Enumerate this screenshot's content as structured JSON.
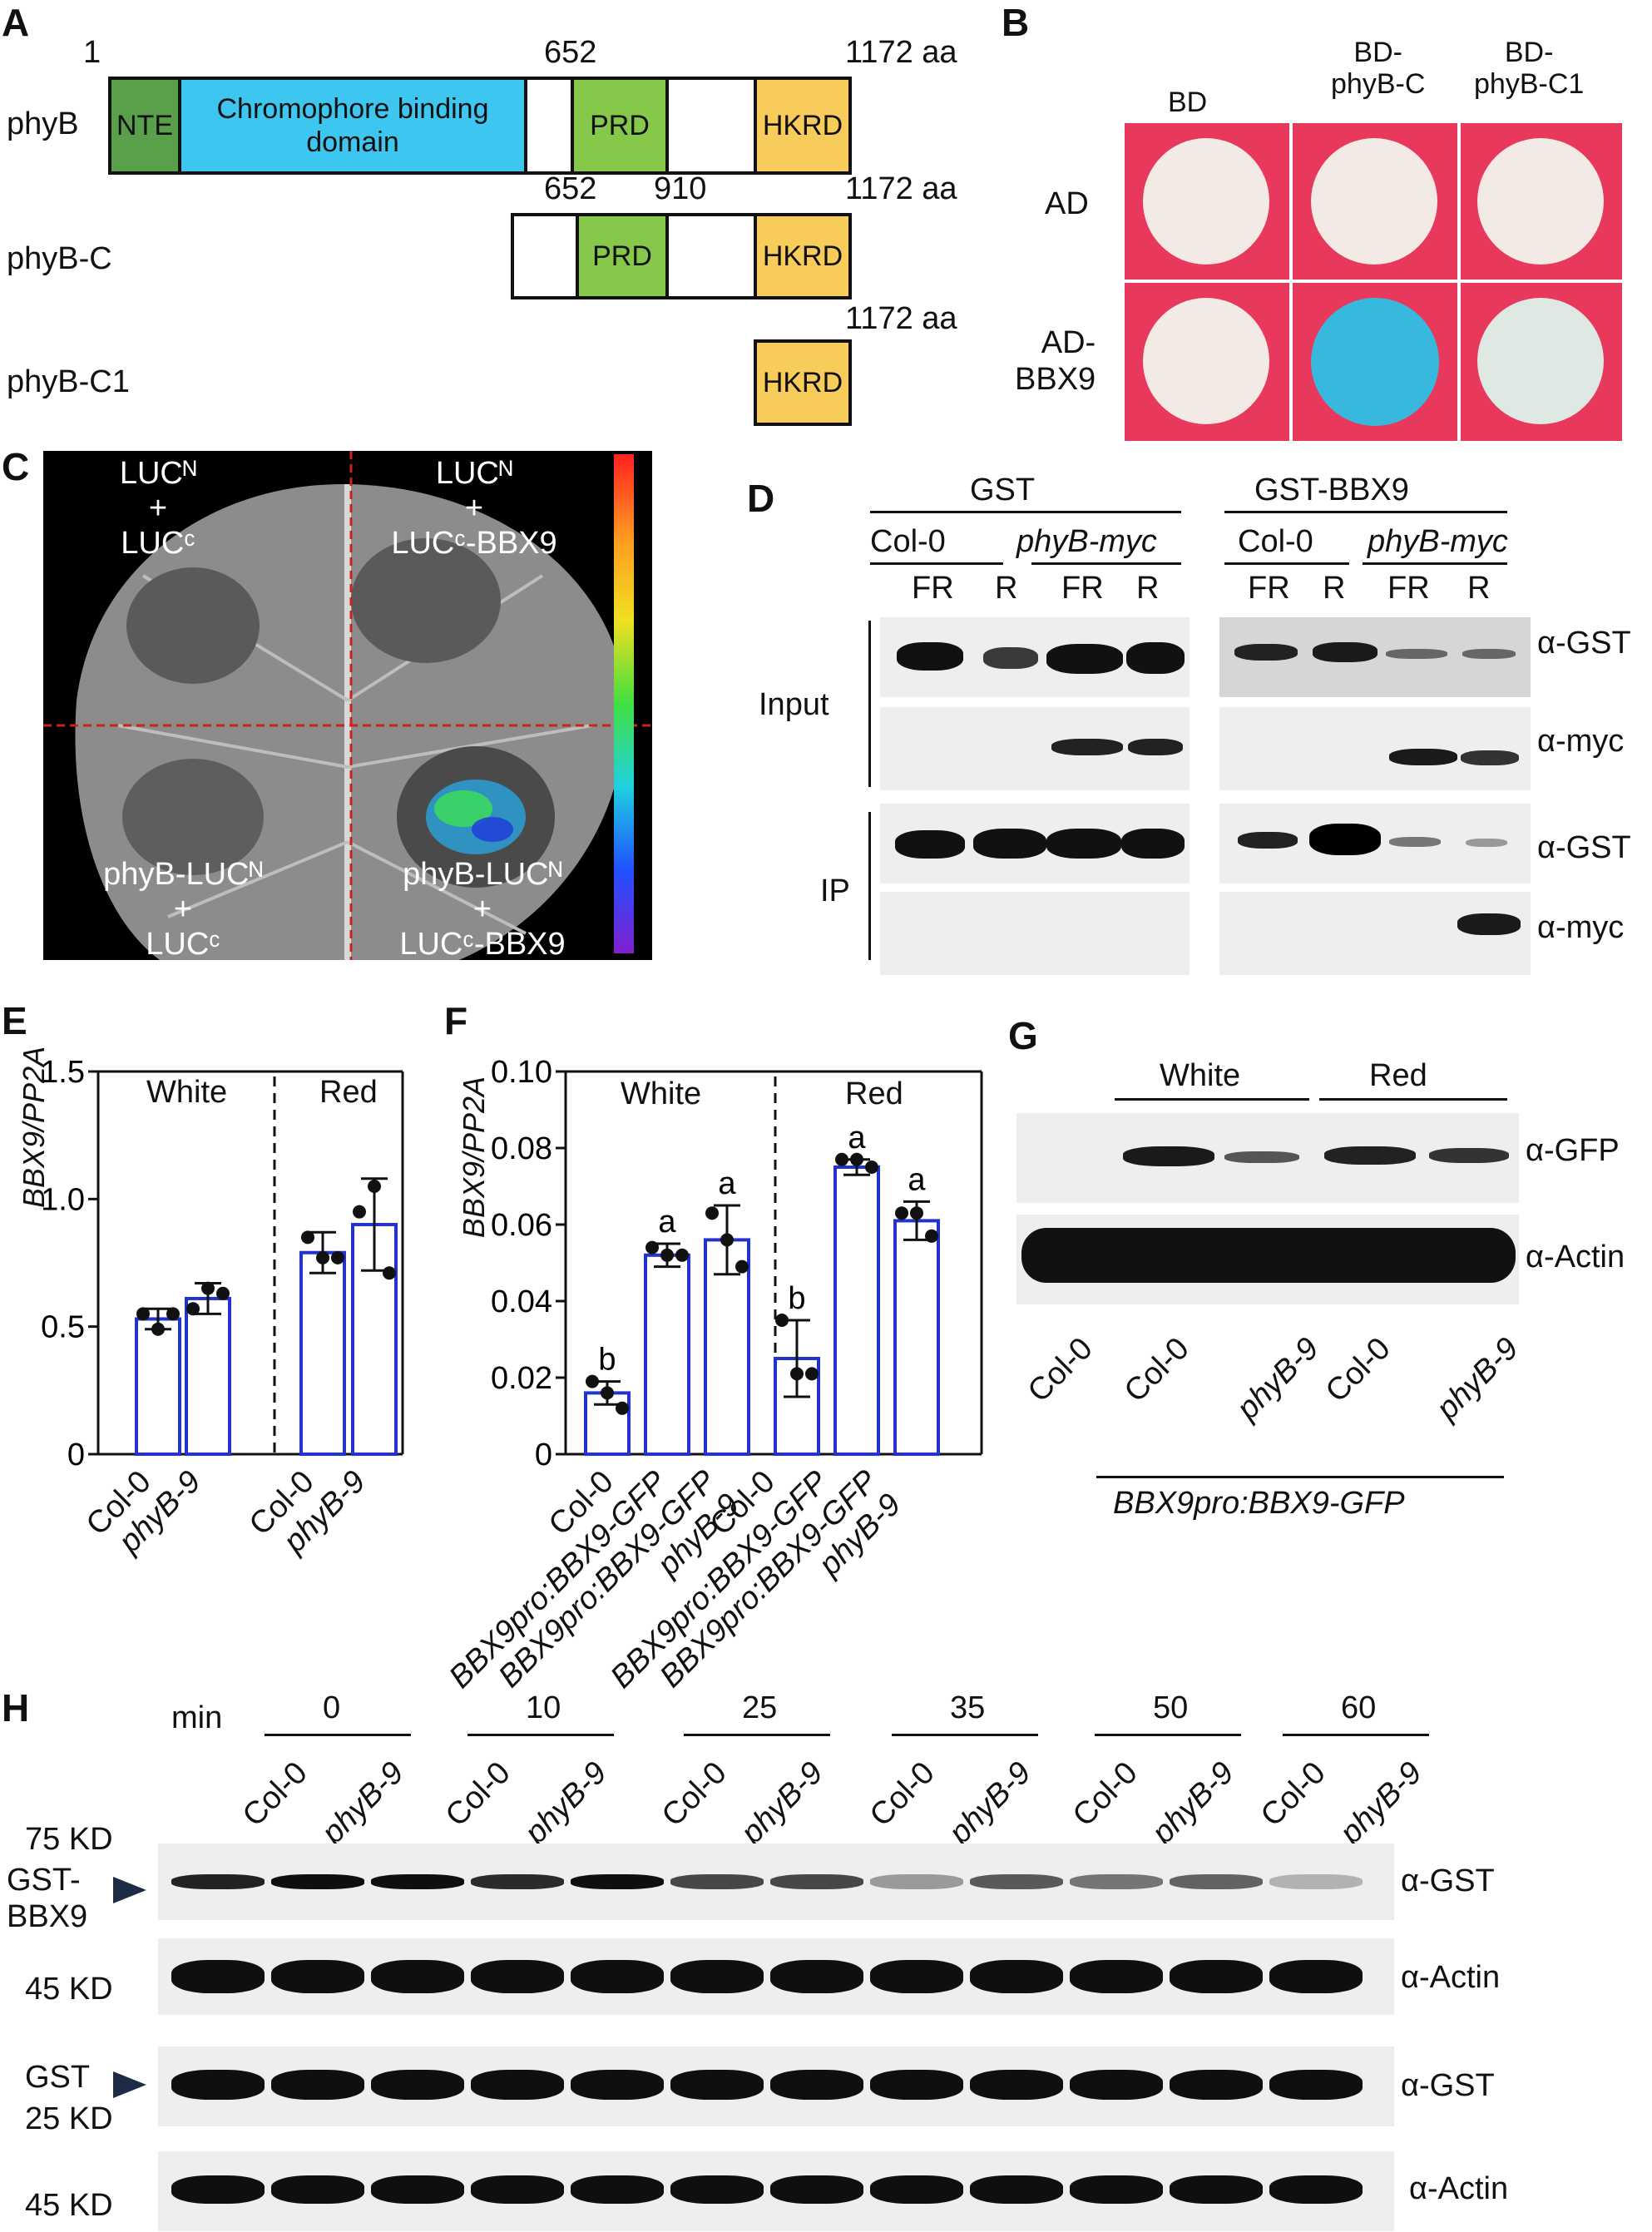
{
  "panelA": {
    "label": "A",
    "rows": [
      {
        "name": "phyB",
        "num_left": "1",
        "num_mid": "652",
        "num_right": "1172 aa",
        "domains": [
          "NTE",
          "Chromophore binding domain",
          "PRD",
          "HKRD"
        ]
      },
      {
        "name": "phyB-C",
        "num_left": "652",
        "num_mid": "910",
        "num_right": "1172 aa",
        "domains": [
          "PRD",
          "HKRD"
        ]
      },
      {
        "name": "phyB-C1",
        "num_right": "1172 aa",
        "domains": [
          "HKRD"
        ]
      }
    ],
    "colors": {
      "NTE": "#5aa04a",
      "chromophore": "#3cc6f0",
      "PRD": "#86c84a",
      "HKRD": "#f7cc5a"
    }
  },
  "panelB": {
    "label": "B",
    "col_headers": [
      "BD",
      "BD-\nphyB-C",
      "BD-\nphyB-C1"
    ],
    "row_headers": [
      "AD",
      "AD-\nBBX9"
    ],
    "colors": {
      "background": "#e8385c",
      "white_spot": "#f3eae6",
      "blue_spot": "#39b8de",
      "pale_spot": "#dfe8e2"
    }
  },
  "panelC": {
    "label": "C",
    "quadrants": {
      "top_left": [
        "LUCᴺ",
        "+",
        "LUCᶜ"
      ],
      "top_right": [
        "LUCᴺ",
        "+",
        "LUCᶜ-BBX9"
      ],
      "bottom_left": [
        "phyB-LUCᴺ",
        "+",
        "LUCᶜ"
      ],
      "bottom_right": [
        "phyB-LUCᴺ",
        "+",
        "LUCᶜ-BBX9"
      ]
    }
  },
  "panelD": {
    "label": "D",
    "group_left": "GST",
    "group_right": "GST-BBX9",
    "genotypes": [
      "Col-0",
      "phyB-myc"
    ],
    "lanes": [
      "FR",
      "R",
      "FR",
      "R"
    ],
    "row_groups": [
      "Input",
      "IP"
    ],
    "antibodies": [
      "α-GST",
      "α-myc",
      "α-GST",
      "α-myc"
    ]
  },
  "panelE": {
    "label": "E",
    "ylabel": "BBX9/PP2A",
    "ticks": [
      "0",
      "0.5",
      "1.0",
      "1.5"
    ],
    "sections": [
      "White",
      "Red"
    ],
    "categories": [
      "Col-0",
      "phyB-9",
      "Col-0",
      "phyB-9"
    ]
  },
  "panelF": {
    "label": "F",
    "ylabel": "BBX9/PP2A",
    "ticks": [
      "0",
      "0.02",
      "0.04",
      "0.06",
      "0.08",
      "0.10"
    ],
    "sections": [
      "White",
      "Red"
    ],
    "letters": [
      "b",
      "a",
      "a",
      "b",
      "a",
      "a"
    ],
    "categories": [
      "Col-0",
      "BBX9pro:BBX9-GFP",
      "BBX9pro:BBX9-GFP\nphyB-9",
      "Col-0",
      "BBX9pro:BBX9-GFP",
      "BBX9pro:BBX9-GFP\nphyB-9"
    ]
  },
  "panelG": {
    "label": "G",
    "sections": [
      "White",
      "Red"
    ],
    "antibodies": [
      "α-GFP",
      "α-Actin"
    ],
    "lanes": [
      "Col-0",
      "Col-0",
      "phyB-9",
      "Col-0",
      "phyB-9"
    ],
    "footer": "BBX9pro:BBX9-GFP"
  },
  "panelH": {
    "label": "H",
    "time_unit": "min",
    "times": [
      "0",
      "10",
      "25",
      "35",
      "50",
      "60"
    ],
    "genotypes": [
      "Col-0",
      "phyB-9"
    ],
    "markers": [
      "75 KD",
      "GST-\nBBX9",
      "45 KD",
      "GST",
      "25 KD",
      "45 KD"
    ],
    "antibodies": [
      "α-GST",
      "α-Actin",
      "α-GST",
      "α-Actin"
    ]
  },
  "chart_data": [
    {
      "type": "bar",
      "panel": "E",
      "ylabel": "BBX9/PP2A",
      "ylim": [
        0,
        1.5
      ],
      "groups": [
        "White",
        "White",
        "Red",
        "Red"
      ],
      "categories": [
        "Col-0",
        "phyB-9",
        "Col-0",
        "phyB-9"
      ],
      "values": [
        0.53,
        0.61,
        0.79,
        0.9
      ],
      "errors": [
        0.04,
        0.06,
        0.08,
        0.18
      ],
      "points": [
        [
          0.55,
          0.49,
          0.55
        ],
        [
          0.57,
          0.65,
          0.63
        ],
        [
          0.85,
          0.77,
          0.77
        ],
        [
          0.95,
          1.05,
          0.71
        ]
      ]
    },
    {
      "type": "bar",
      "panel": "F",
      "ylabel": "BBX9/PP2A",
      "ylim": [
        0,
        0.1
      ],
      "groups": [
        "White",
        "White",
        "White",
        "Red",
        "Red",
        "Red"
      ],
      "categories": [
        "Col-0",
        "BBX9pro:BBX9-GFP",
        "BBX9pro:BBX9-GFP phyB-9",
        "Col-0",
        "BBX9pro:BBX9-GFP",
        "BBX9pro:BBX9-GFP phyB-9"
      ],
      "values": [
        0.016,
        0.052,
        0.056,
        0.025,
        0.075,
        0.061
      ],
      "errors": [
        0.003,
        0.003,
        0.009,
        0.01,
        0.002,
        0.005
      ],
      "letters": [
        "b",
        "a",
        "a",
        "b",
        "a",
        "a"
      ],
      "points": [
        [
          0.019,
          0.016,
          0.012
        ],
        [
          0.054,
          0.052,
          0.052
        ],
        [
          0.063,
          0.056,
          0.049
        ],
        [
          0.035,
          0.021,
          0.021
        ],
        [
          0.077,
          0.077,
          0.075
        ],
        [
          0.063,
          0.063,
          0.057
        ]
      ]
    }
  ]
}
